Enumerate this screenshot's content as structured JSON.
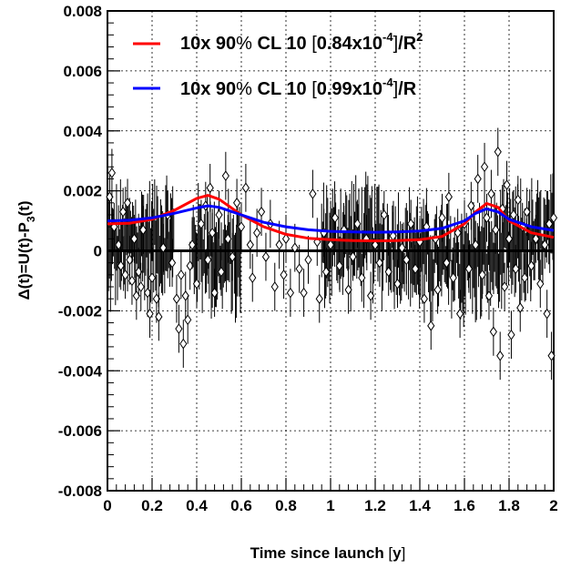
{
  "chart_data": {
    "type": "scatter",
    "title": "",
    "xlabel": "Time since launch [y]",
    "ylabel": "Δ(t)=U(t)-P₃(t)",
    "xlim": [
      0,
      2
    ],
    "ylim": [
      -0.008,
      0.008
    ],
    "x_ticks": [
      "0",
      "0.2",
      "0.4",
      "0.6",
      "0.8",
      "1",
      "1.2",
      "1.4",
      "1.6",
      "1.8",
      "2"
    ],
    "y_ticks": [
      "0.008",
      "0.006",
      "0.004",
      "0.002",
      "0",
      "-0.002",
      "-0.004",
      "-0.006",
      "-0.008"
    ],
    "grid": true,
    "legend_position": "top-right",
    "legend": [
      {
        "label": "10x 90% CL  10 [0.84x10^-4]/R^2",
        "color": "#ff0000"
      },
      {
        "label": "10x 90% CL  10 [0.99x10^-4]/R",
        "color": "#0000ff"
      }
    ],
    "series": [
      {
        "type": "line",
        "color": "#ff0000",
        "x": [
          0,
          0.1,
          0.2,
          0.3,
          0.4,
          0.45,
          0.5,
          0.6,
          0.7,
          0.8,
          0.9,
          1.0,
          1.1,
          1.2,
          1.3,
          1.4,
          1.5,
          1.6,
          1.65,
          1.7,
          1.75,
          1.8,
          1.9,
          2.0
        ],
        "y": [
          0.0009,
          0.00092,
          0.00105,
          0.00135,
          0.00175,
          0.00185,
          0.00172,
          0.0012,
          0.0008,
          0.00055,
          0.00042,
          0.00037,
          0.00034,
          0.00033,
          0.00034,
          0.00037,
          0.00048,
          0.0009,
          0.0013,
          0.00158,
          0.00145,
          0.001,
          0.0006,
          0.00045
        ]
      },
      {
        "type": "line",
        "color": "#0000ff",
        "x": [
          0,
          0.1,
          0.2,
          0.3,
          0.4,
          0.45,
          0.5,
          0.6,
          0.7,
          0.8,
          0.9,
          1.0,
          1.1,
          1.2,
          1.3,
          1.4,
          1.5,
          1.6,
          1.65,
          1.7,
          1.75,
          1.8,
          1.9,
          2.0
        ],
        "y": [
          0.001,
          0.00102,
          0.0011,
          0.00125,
          0.00143,
          0.0015,
          0.00145,
          0.0012,
          0.00095,
          0.0008,
          0.0007,
          0.00065,
          0.00063,
          0.00062,
          0.00063,
          0.00066,
          0.00075,
          0.001,
          0.00125,
          0.0014,
          0.0013,
          0.00105,
          0.0008,
          0.00068
        ]
      }
    ],
    "data_points": [
      [
        0.01,
        0.0018
      ],
      [
        0.02,
        0.0026
      ],
      [
        0.03,
        0.0008
      ],
      [
        0.05,
        0.0002
      ],
      [
        0.06,
        -0.0005
      ],
      [
        0.07,
        0.0013
      ],
      [
        0.08,
        -0.0008
      ],
      [
        0.09,
        0.0016
      ],
      [
        0.1,
        -0.0003
      ],
      [
        0.11,
        -0.001
      ],
      [
        0.12,
        0.0004
      ],
      [
        0.13,
        -0.0015
      ],
      [
        0.14,
        -0.0007
      ],
      [
        0.15,
        -0.0012
      ],
      [
        0.16,
        0.0007
      ],
      [
        0.18,
        -0.0014
      ],
      [
        0.19,
        -0.0021
      ],
      [
        0.2,
        -0.0009
      ],
      [
        0.22,
        -0.0016
      ],
      [
        0.23,
        -0.0022
      ],
      [
        0.25,
        0.0001
      ],
      [
        0.27,
        0.0012
      ],
      [
        0.29,
        -0.0004
      ],
      [
        0.31,
        -0.0016
      ],
      [
        0.32,
        -0.0026
      ],
      [
        0.33,
        -0.0008
      ],
      [
        0.34,
        -0.0031
      ],
      [
        0.35,
        -0.0015
      ],
      [
        0.36,
        -0.0023
      ],
      [
        0.37,
        -0.0005
      ],
      [
        0.38,
        0.0002
      ],
      [
        0.4,
        -0.0011
      ],
      [
        0.42,
        0.0009
      ],
      [
        0.44,
        0.0015
      ],
      [
        0.45,
        -0.0003
      ],
      [
        0.46,
        0.0021
      ],
      [
        0.47,
        0.0006
      ],
      [
        0.48,
        -0.0014
      ],
      [
        0.5,
        0.0012
      ],
      [
        0.51,
        -0.0007
      ],
      [
        0.53,
        0.0025
      ],
      [
        0.54,
        0.0004
      ],
      [
        0.56,
        -0.0002
      ],
      [
        0.58,
        0.0016
      ],
      [
        0.6,
        0.0008
      ],
      [
        0.62,
        0.0021
      ],
      [
        0.64,
        0.0002
      ],
      [
        0.65,
        -0.0009
      ],
      [
        0.67,
        0.0006
      ],
      [
        0.69,
        0.0013
      ],
      [
        0.71,
        -0.0002
      ],
      [
        0.73,
        0.0009
      ],
      [
        0.75,
        -0.0012
      ],
      [
        0.77,
        0.0002
      ],
      [
        0.79,
        -0.0008
      ],
      [
        0.8,
        0.0004
      ],
      [
        0.82,
        -0.0014
      ],
      [
        0.84,
        0.0001
      ],
      [
        0.86,
        -0.0006
      ],
      [
        0.88,
        -0.0014
      ],
      [
        0.9,
        -0.0003
      ],
      [
        0.92,
        0.0019
      ],
      [
        0.94,
        0.0003
      ],
      [
        0.95,
        -0.0016
      ],
      [
        0.97,
        0.0006
      ],
      [
        0.98,
        -0.0007
      ],
      [
        1.0,
        0.0002
      ],
      [
        1.02,
        0.0011
      ],
      [
        1.04,
        -0.0005
      ],
      [
        1.06,
        0.0007
      ],
      [
        1.08,
        -0.0013
      ],
      [
        1.1,
        -0.0002
      ],
      [
        1.12,
        0.0009
      ],
      [
        1.14,
        -0.0009
      ],
      [
        1.16,
        0.0004
      ],
      [
        1.18,
        -0.0015
      ],
      [
        1.2,
        0.0002
      ],
      [
        1.22,
        -0.0004
      ],
      [
        1.24,
        0.0012
      ],
      [
        1.26,
        -0.0007
      ],
      [
        1.28,
        0.0005
      ],
      [
        1.3,
        -0.0011
      ],
      [
        1.32,
        0.0001
      ],
      [
        1.34,
        -0.0003
      ],
      [
        1.36,
        0.0009
      ],
      [
        1.38,
        -0.0006
      ],
      [
        1.4,
        0.0003
      ],
      [
        1.42,
        -0.0016
      ],
      [
        1.43,
        0.0008
      ],
      [
        1.45,
        -0.0025
      ],
      [
        1.47,
        0.0004
      ],
      [
        1.48,
        -0.0013
      ],
      [
        1.5,
        0.0011
      ],
      [
        1.52,
        -0.0004
      ],
      [
        1.53,
        0.0018
      ],
      [
        1.55,
        -0.0009
      ],
      [
        1.57,
        0.0006
      ],
      [
        1.58,
        -0.0021
      ],
      [
        1.6,
        0.0009
      ],
      [
        1.62,
        -0.0006
      ],
      [
        1.63,
        0.0015
      ],
      [
        1.65,
        0.0002
      ],
      [
        1.66,
        0.0024
      ],
      [
        1.68,
        -0.0008
      ],
      [
        1.69,
        0.0028
      ],
      [
        1.7,
        0.0011
      ],
      [
        1.71,
        -0.0015
      ],
      [
        1.72,
        0.0019
      ],
      [
        1.73,
        -0.0027
      ],
      [
        1.74,
        0.0007
      ],
      [
        1.75,
        0.0033
      ],
      [
        1.76,
        -0.0035
      ],
      [
        1.77,
        0.0014
      ],
      [
        1.78,
        -0.0012
      ],
      [
        1.79,
        0.0022
      ],
      [
        1.8,
        0.0004
      ],
      [
        1.81,
        -0.0028
      ],
      [
        1.82,
        0.0012
      ],
      [
        1.83,
        -0.0006
      ],
      [
        1.84,
        0.0017
      ],
      [
        1.85,
        -0.0019
      ],
      [
        1.86,
        0.0008
      ],
      [
        1.87,
        -0.0009
      ],
      [
        1.88,
        0.0013
      ],
      [
        1.9,
        -0.0005
      ],
      [
        1.92,
        0.0004
      ],
      [
        1.94,
        -0.0011
      ],
      [
        1.96,
        0.0002
      ],
      [
        1.97,
        -0.0021
      ],
      [
        1.98,
        0.0009
      ],
      [
        1.99,
        -0.0035
      ],
      [
        2.0,
        0.0011
      ]
    ]
  }
}
